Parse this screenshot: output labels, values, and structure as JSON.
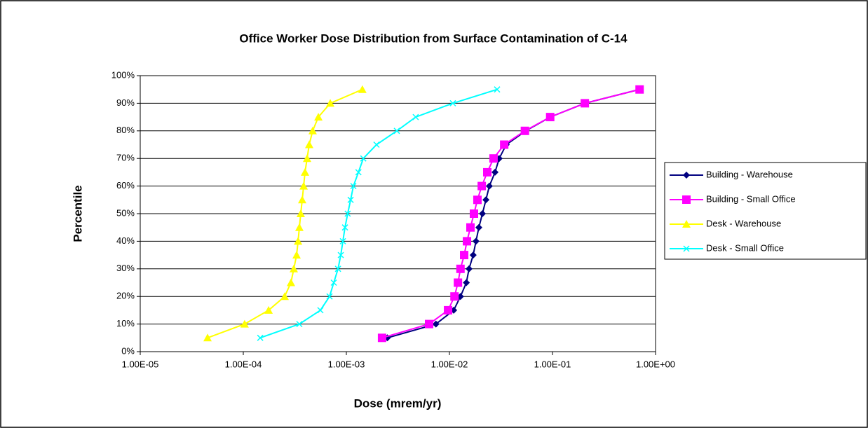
{
  "chart_data": {
    "type": "scatter-line",
    "title": "Office Worker Dose Distribution from Surface Contamination of C-14",
    "xlabel": "Dose (mrem/yr)",
    "ylabel": "Percentile",
    "xscale": "log",
    "xlim": [
      1e-05,
      1
    ],
    "xticks": [
      {
        "value": 1e-05,
        "label": "1.00E-05"
      },
      {
        "value": 0.0001,
        "label": "1.00E-04"
      },
      {
        "value": 0.001,
        "label": "1.00E-03"
      },
      {
        "value": 0.01,
        "label": "1.00E-02"
      },
      {
        "value": 0.1,
        "label": "1.00E-01"
      },
      {
        "value": 1,
        "label": "1.00E+00"
      }
    ],
    "ylim": [
      0,
      100
    ],
    "yticks": [
      {
        "value": 0,
        "label": "0%"
      },
      {
        "value": 10,
        "label": "10%"
      },
      {
        "value": 20,
        "label": "20%"
      },
      {
        "value": 30,
        "label": "30%"
      },
      {
        "value": 40,
        "label": "40%"
      },
      {
        "value": 50,
        "label": "50%"
      },
      {
        "value": 60,
        "label": "60%"
      },
      {
        "value": 70,
        "label": "70%"
      },
      {
        "value": 80,
        "label": "80%"
      },
      {
        "value": 90,
        "label": "90%"
      },
      {
        "value": 100,
        "label": "100%"
      }
    ],
    "grid": true,
    "legend": "right",
    "series": [
      {
        "name": "Building - Warehouse",
        "color": "#000080",
        "marker": "diamond",
        "x": [
          0.0025,
          0.0074,
          0.011,
          0.0128,
          0.0146,
          0.0155,
          0.017,
          0.0181,
          0.0193,
          0.0209,
          0.0226,
          0.0244,
          0.0277,
          0.0304,
          0.0356,
          0.055,
          0.095,
          0.206,
          0.7
        ],
        "values": [
          5,
          10,
          15,
          20,
          25,
          30,
          35,
          40,
          45,
          50,
          55,
          60,
          65,
          70,
          75,
          80,
          85,
          90,
          95
        ]
      },
      {
        "name": "Building - Small Office",
        "color": "#ff00ff",
        "marker": "square",
        "x": [
          0.00222,
          0.00635,
          0.0097,
          0.0112,
          0.0121,
          0.0128,
          0.0139,
          0.0148,
          0.016,
          0.0173,
          0.0187,
          0.0206,
          0.0233,
          0.0268,
          0.034,
          0.054,
          0.095,
          0.206,
          0.7
        ],
        "values": [
          5,
          10,
          15,
          20,
          25,
          30,
          35,
          40,
          45,
          50,
          55,
          60,
          65,
          70,
          75,
          80,
          85,
          90,
          95
        ]
      },
      {
        "name": "Desk - Warehouse",
        "color": "#ffff00",
        "marker": "triangle",
        "x": [
          4.5e-05,
          0.000103,
          0.000176,
          0.000252,
          0.00029,
          0.000309,
          0.000329,
          0.00034,
          0.00035,
          0.000361,
          0.000373,
          0.000385,
          0.000397,
          0.000416,
          0.000436,
          0.000471,
          0.000535,
          0.000698,
          0.00143
        ],
        "values": [
          5,
          10,
          15,
          20,
          25,
          30,
          35,
          40,
          45,
          50,
          55,
          60,
          65,
          70,
          75,
          80,
          85,
          90,
          95
        ]
      },
      {
        "name": "Desk - Small Office",
        "color": "#00ffff",
        "marker": "x",
        "x": [
          0.000146,
          0.00035,
          0.00056,
          0.000687,
          0.000755,
          0.00083,
          0.000883,
          0.000925,
          0.00097,
          0.00103,
          0.0011,
          0.00117,
          0.00131,
          0.00146,
          0.00196,
          0.00309,
          0.00471,
          0.0108,
          0.029
        ],
        "values": [
          5,
          10,
          15,
          20,
          25,
          30,
          35,
          40,
          45,
          50,
          55,
          60,
          65,
          70,
          75,
          80,
          85,
          90,
          95
        ]
      }
    ]
  }
}
